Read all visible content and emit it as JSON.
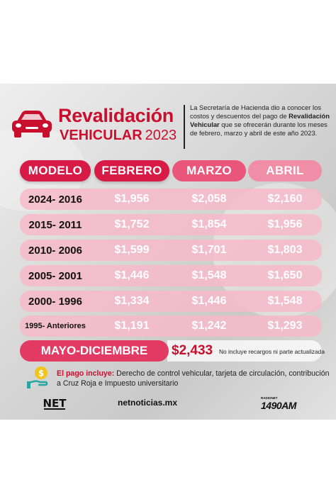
{
  "header": {
    "title_line1": "Revalidación",
    "title_line2": "VEHICULAR",
    "title_year": "2023",
    "description_pre": "La Secretaría de Hacienda dio a conocer los costos y descuentos del pago de ",
    "description_bold": "Revalidación Vehicular",
    "description_post": " que se ofrecerán durante los meses de febrero, marzo y abril de este año 2023."
  },
  "table": {
    "headers": [
      "MODELO",
      "FEBRERO",
      "MARZO",
      "ABRIL"
    ],
    "rows": [
      {
        "modelo": "2024- 2016",
        "febrero": "$1,956",
        "marzo": "$2,058",
        "abril": "$2,160"
      },
      {
        "modelo": "2015- 2011",
        "febrero": "$1,752",
        "marzo": "$1,854",
        "abril": "$1,956"
      },
      {
        "modelo": "2010- 2006",
        "febrero": "$1,599",
        "marzo": "$1,701",
        "abril": "$1,803"
      },
      {
        "modelo": "2005- 2001",
        "febrero": "$1,446",
        "marzo": "$1,548",
        "abril": "$1,650"
      },
      {
        "modelo": "2000- 1996",
        "febrero": "$1,334",
        "marzo": "$1,446",
        "abril": "$1,548"
      },
      {
        "modelo": "1995- Anteriores",
        "febrero": "$1,191",
        "marzo": "$1,242",
        "abril": "$1,293"
      }
    ]
  },
  "mayo": {
    "label": "MAYO-DICIEMBRE",
    "amount": "$2,433",
    "note": "No incluye recargos ni parte actualizada"
  },
  "incluye": {
    "label": "El pago incluye:",
    "text": " Derecho de control vehicular, tarjeta de circulación, contribución a Cruz Roja e Impuesto universitario"
  },
  "footer": {
    "logo_text": "NET",
    "url": "netnoticias.mx",
    "radio_small": "RADIONET",
    "radio_big": "1490AM"
  },
  "colors": {
    "brand_red": "#c8102e",
    "header_pink": "#d81b46",
    "row_pink": "#f8b8c9"
  }
}
